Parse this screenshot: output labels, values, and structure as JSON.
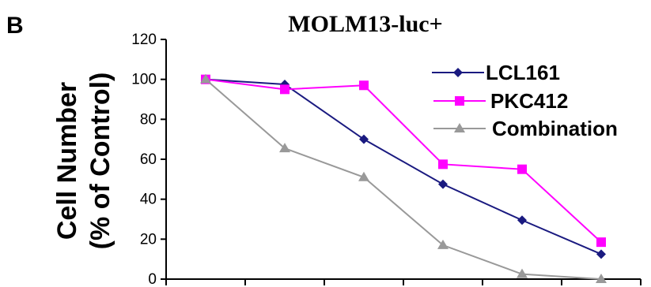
{
  "panel_label": "B",
  "chart_data": {
    "type": "line",
    "title": "MOLM13-luc+",
    "ylabel_line1": "Cell Number",
    "ylabel_line2": "(% of Control)",
    "xlabel": "",
    "ylim": [
      0,
      120
    ],
    "yticks": [
      0,
      20,
      40,
      60,
      80,
      100,
      120
    ],
    "x": [
      1,
      2,
      3,
      4,
      5,
      6
    ],
    "grid": false,
    "legend_position": "top-right",
    "series": [
      {
        "name": "LCL161",
        "values": [
          100,
          97.5,
          70,
          47.5,
          29.5,
          12.5
        ],
        "color": "#1a1a80",
        "marker": "diamond"
      },
      {
        "name": "PKC412",
        "values": [
          100,
          95,
          97,
          57.5,
          55,
          18.5
        ],
        "color": "#ff00ff",
        "marker": "square"
      },
      {
        "name": "Combination",
        "values": [
          100,
          65.5,
          51,
          17,
          2.5,
          0
        ],
        "color": "#999999",
        "marker": "triangle"
      }
    ]
  }
}
